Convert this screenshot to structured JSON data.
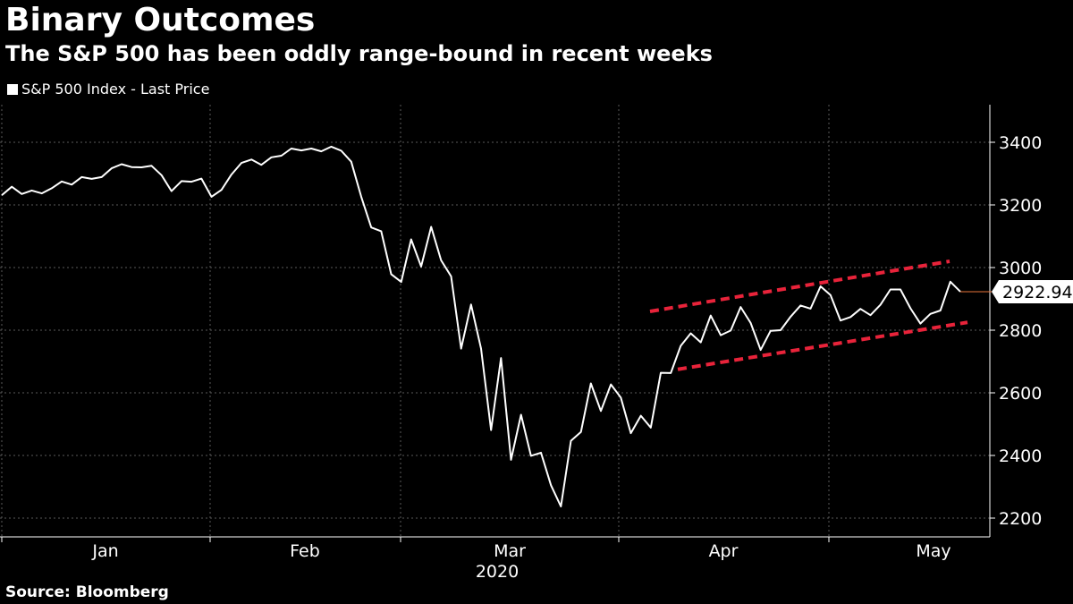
{
  "header": {
    "title": "Binary Outcomes",
    "subtitle": "The S&P 500 has been oddly range-bound in recent weeks"
  },
  "footer": {
    "source": "Source: Bloomberg"
  },
  "colors": {
    "background": "#000000",
    "line": "#ffffff",
    "trend": "#e8233a",
    "grid": "#5a5a5a",
    "last_marker": "#e8743a"
  },
  "chart_data": {
    "type": "line",
    "title": "Binary Outcomes",
    "subtitle": "The S&P 500 has been oddly range-bound in recent weeks",
    "legend": "S&P 500 Index - Last Price",
    "legend_position": "top-left",
    "ylim": [
      2140,
      3520
    ],
    "y_ticks": [
      2200,
      2400,
      2600,
      2800,
      3000,
      3200,
      3400
    ],
    "y_tick_labels": [
      "2200",
      "2400",
      "2600",
      "2800",
      "3000",
      "3200",
      "3400"
    ],
    "x_month_labels": [
      "Jan",
      "Feb",
      "Mar",
      "Apr",
      "May"
    ],
    "x_year_label": "2020",
    "grid": true,
    "last_value_label": "2922.94",
    "series": [
      {
        "name": "S&P 500 Index - Last Price",
        "values": [
          3231,
          3258,
          3235,
          3246,
          3237,
          3253,
          3275,
          3265,
          3289,
          3283,
          3289,
          3317,
          3330,
          3321,
          3320,
          3325,
          3295,
          3244,
          3276,
          3274,
          3284,
          3226,
          3248,
          3297,
          3334,
          3345,
          3328,
          3352,
          3357,
          3380,
          3374,
          3380,
          3371,
          3386,
          3373,
          3338,
          3226,
          3128,
          3116,
          2979,
          2954,
          3090,
          3003,
          3130,
          3023,
          2972,
          2741,
          2882,
          2741,
          2481,
          2711,
          2386,
          2530,
          2399,
          2409,
          2305,
          2237,
          2447,
          2475,
          2630,
          2542,
          2627,
          2585,
          2471,
          2527,
          2489,
          2664,
          2663,
          2750,
          2790,
          2761,
          2847,
          2784,
          2799,
          2874,
          2823,
          2737,
          2798,
          2800,
          2843,
          2879,
          2869,
          2940,
          2912,
          2831,
          2842,
          2868,
          2848,
          2881,
          2930,
          2930,
          2870,
          2821,
          2852,
          2863,
          2955,
          2923
        ]
      }
    ],
    "trend_channel": {
      "upper": {
        "start": 2860,
        "end": 3020
      },
      "lower": {
        "start": 2675,
        "end": 2825
      }
    }
  }
}
